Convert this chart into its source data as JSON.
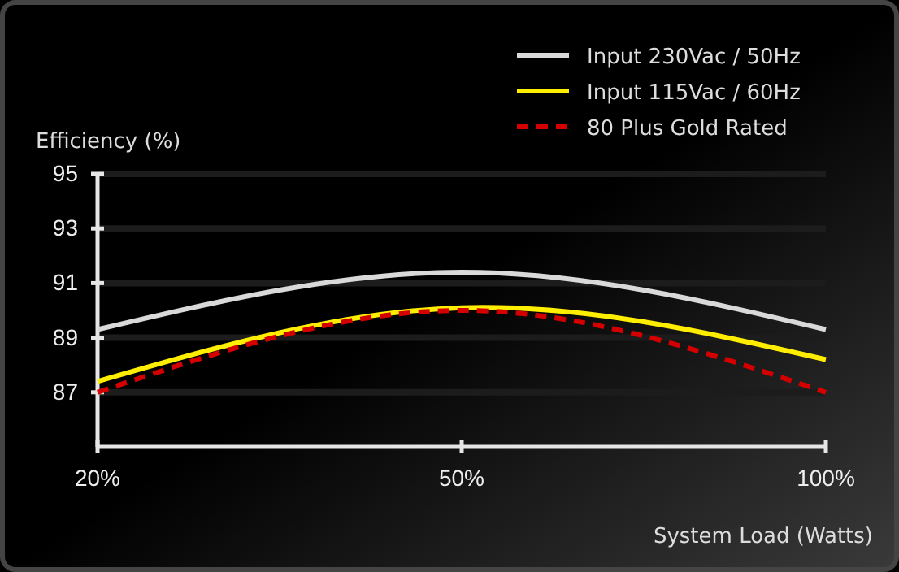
{
  "chart_data": {
    "type": "line",
    "ylabel": "Efficiency (%)",
    "xlabel": "System Load (Watts)",
    "categories": [
      "20%",
      "50%",
      "100%"
    ],
    "ylim": [
      85,
      95
    ],
    "yticks": [
      87,
      89,
      91,
      93,
      95
    ],
    "grid": "y",
    "legend": "top right",
    "series": [
      {
        "name": "Input 230Vac / 50Hz",
        "color": "#d9d9d9",
        "values": [
          89.3,
          91.4,
          89.3
        ],
        "line_style": "solid"
      },
      {
        "name": "Input 115Vac / 60Hz",
        "color": "#ffee00",
        "values": [
          87.4,
          90.1,
          88.2
        ],
        "line_style": "solid"
      },
      {
        "name": "80 Plus Gold Rated",
        "color": "#d40000",
        "values": [
          87,
          90,
          87
        ],
        "line_style": "dashed"
      }
    ]
  }
}
